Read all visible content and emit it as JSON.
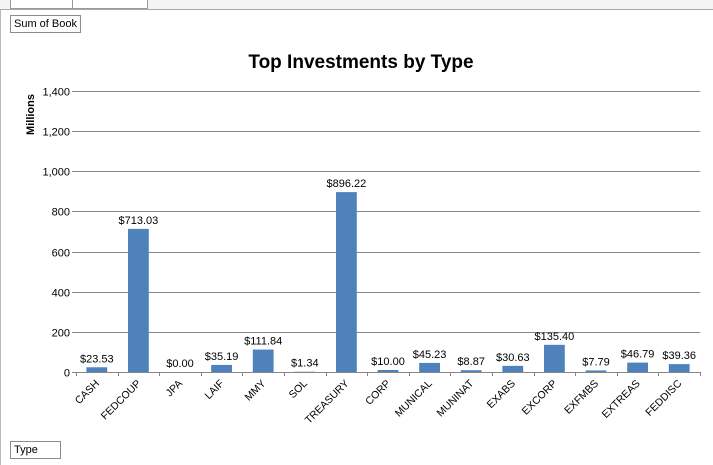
{
  "pivot": {
    "value_field": "Sum of Book",
    "axis_field": "Type"
  },
  "chart_data": {
    "type": "bar",
    "title": "Top Investments by Type",
    "xlabel": "",
    "ylabel": "Millions",
    "ylim": [
      0,
      1400
    ],
    "yticks": [
      0,
      200,
      400,
      600,
      800,
      1000,
      1200,
      1400
    ],
    "ytick_labels": [
      "0",
      "200",
      "400",
      "600",
      "800",
      "1,000",
      "1,200",
      "1,400"
    ],
    "grid": true,
    "legend": "none",
    "bar_color": "#4f81bd",
    "categories": [
      "CASH",
      "FEDCOUP",
      "JPA",
      "LAIF",
      "MMY",
      "SOL",
      "TREASURY",
      "CORP",
      "MUNICAL",
      "MUNINAT",
      "EXABS",
      "EXCORP",
      "EXFMBS",
      "EXTREAS",
      "FEDDISC"
    ],
    "values": [
      23.53,
      713.03,
      0.0,
      35.19,
      111.84,
      1.34,
      896.22,
      10.0,
      45.23,
      8.87,
      30.63,
      135.4,
      7.79,
      46.79,
      39.36
    ],
    "data_labels": [
      "$23.53",
      "$713.03",
      "$0.00",
      "$35.19",
      "$111.84",
      "$1.34",
      "$896.22",
      "$10.00",
      "$45.23",
      "$8.87",
      "$30.63",
      "$135.40",
      "$7.79",
      "$46.79",
      "$39.36"
    ]
  }
}
